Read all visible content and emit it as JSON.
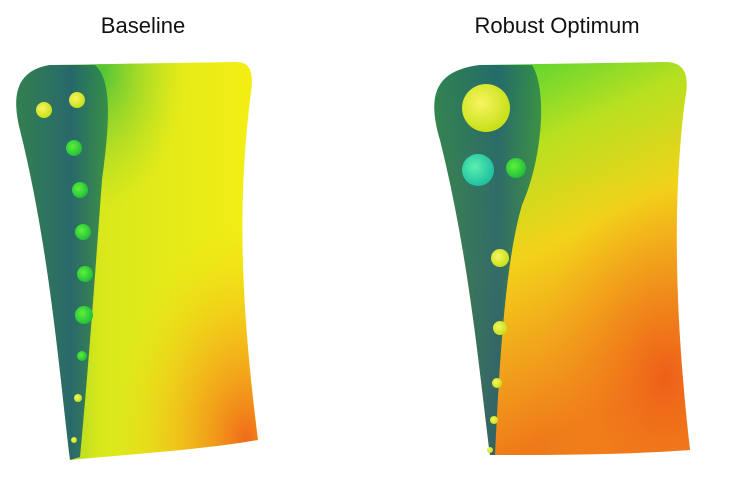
{
  "panels": [
    {
      "title": "Baseline"
    },
    {
      "title": "Robust Optimum"
    }
  ]
}
